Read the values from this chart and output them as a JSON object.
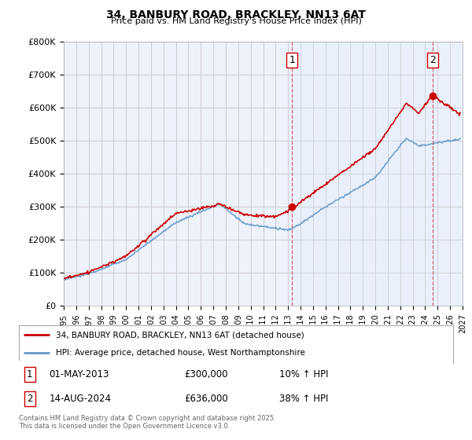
{
  "title": "34, BANBURY ROAD, BRACKLEY, NN13 6AT",
  "subtitle": "Price paid vs. HM Land Registry's House Price Index (HPI)",
  "ylabel_ticks": [
    "£0",
    "£100K",
    "£200K",
    "£300K",
    "£400K",
    "£500K",
    "£600K",
    "£700K",
    "£800K"
  ],
  "ylim": [
    0,
    800000
  ],
  "xlim_start": 1995.0,
  "xlim_end": 2027.0,
  "line1_color": "#cc0000",
  "line2_color": "#6699cc",
  "shade_color": "#ddeeff",
  "point1_label": "1",
  "point1_x": 2013.33,
  "point1_y": 300000,
  "point1_date": "01-MAY-2013",
  "point1_price": "£300,000",
  "point1_hpi": "10% ↑ HPI",
  "point2_label": "2",
  "point2_x": 2024.62,
  "point2_y": 636000,
  "point2_date": "14-AUG-2024",
  "point2_price": "£636,000",
  "point2_hpi": "38% ↑ HPI",
  "legend_line1": "34, BANBURY ROAD, BRACKLEY, NN13 6AT (detached house)",
  "legend_line2": "HPI: Average price, detached house, West Northamptonshire",
  "footer": "Contains HM Land Registry data © Crown copyright and database right 2025.\nThis data is licensed under the Open Government Licence v3.0.",
  "bg_color": "#ffffff",
  "grid_color": "#cccccc",
  "plot_bg": "#eef2fb"
}
